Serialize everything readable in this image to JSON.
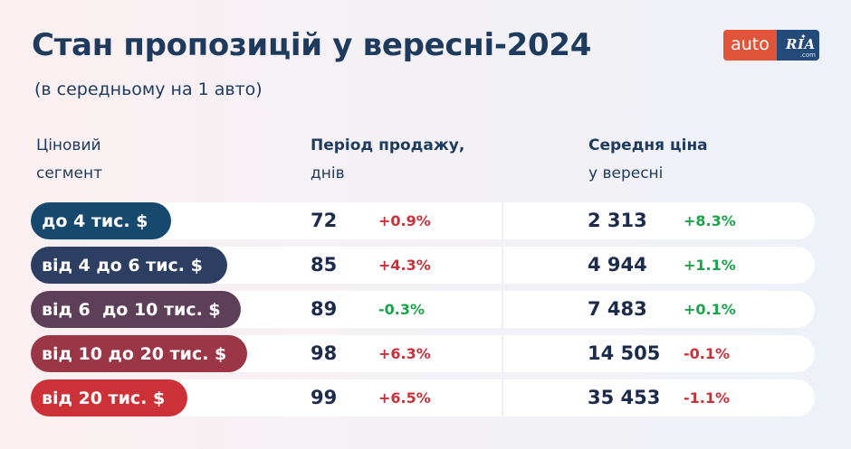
{
  "title": "Стан пропозицій у вересні-2024",
  "subtitle": "(в середньому на 1 авто)",
  "logo": {
    "auto": "auto",
    "ria": "RIA",
    "com": ".com"
  },
  "headers": {
    "segment": [
      "Ціновий",
      "сегмент"
    ],
    "period": [
      "Період продажу,",
      "днів"
    ],
    "price": [
      "Середня ціна",
      "у вересні"
    ]
  },
  "colors": {
    "positive": "#1aa34a",
    "negative": "#c8303a",
    "title": "#1e3a5c"
  },
  "rows": [
    {
      "segment": "до 4 тис. $",
      "color": "#17486e",
      "days": "72",
      "days_change": "+0.9%",
      "days_trend": "negative",
      "price": "2 313",
      "price_change": "+8.3%",
      "price_trend": "positive"
    },
    {
      "segment": "від 4 до 6 тис. $",
      "color": "#2c3f63",
      "days": "85",
      "days_change": "+4.3%",
      "days_trend": "negative",
      "price": "4 944",
      "price_change": "+1.1%",
      "price_trend": "positive"
    },
    {
      "segment": "від 6  до 10 тис. $",
      "color": "#5d3f58",
      "days": "89",
      "days_change": "-0.3%",
      "days_trend": "positive",
      "price": "7 483",
      "price_change": "+0.1%",
      "price_trend": "positive"
    },
    {
      "segment": "від 10 до 20 тис. $",
      "color": "#9a3646",
      "days": "98",
      "days_change": "+6.3%",
      "days_trend": "negative",
      "price": "14 505",
      "price_change": "-0.1%",
      "price_trend": "negative"
    },
    {
      "segment": "від 20 тис. $",
      "color": "#cc3138",
      "days": "99",
      "days_change": "+6.5%",
      "days_trend": "negative",
      "price": "35 453",
      "price_change": "-1.1%",
      "price_trend": "negative"
    }
  ]
}
